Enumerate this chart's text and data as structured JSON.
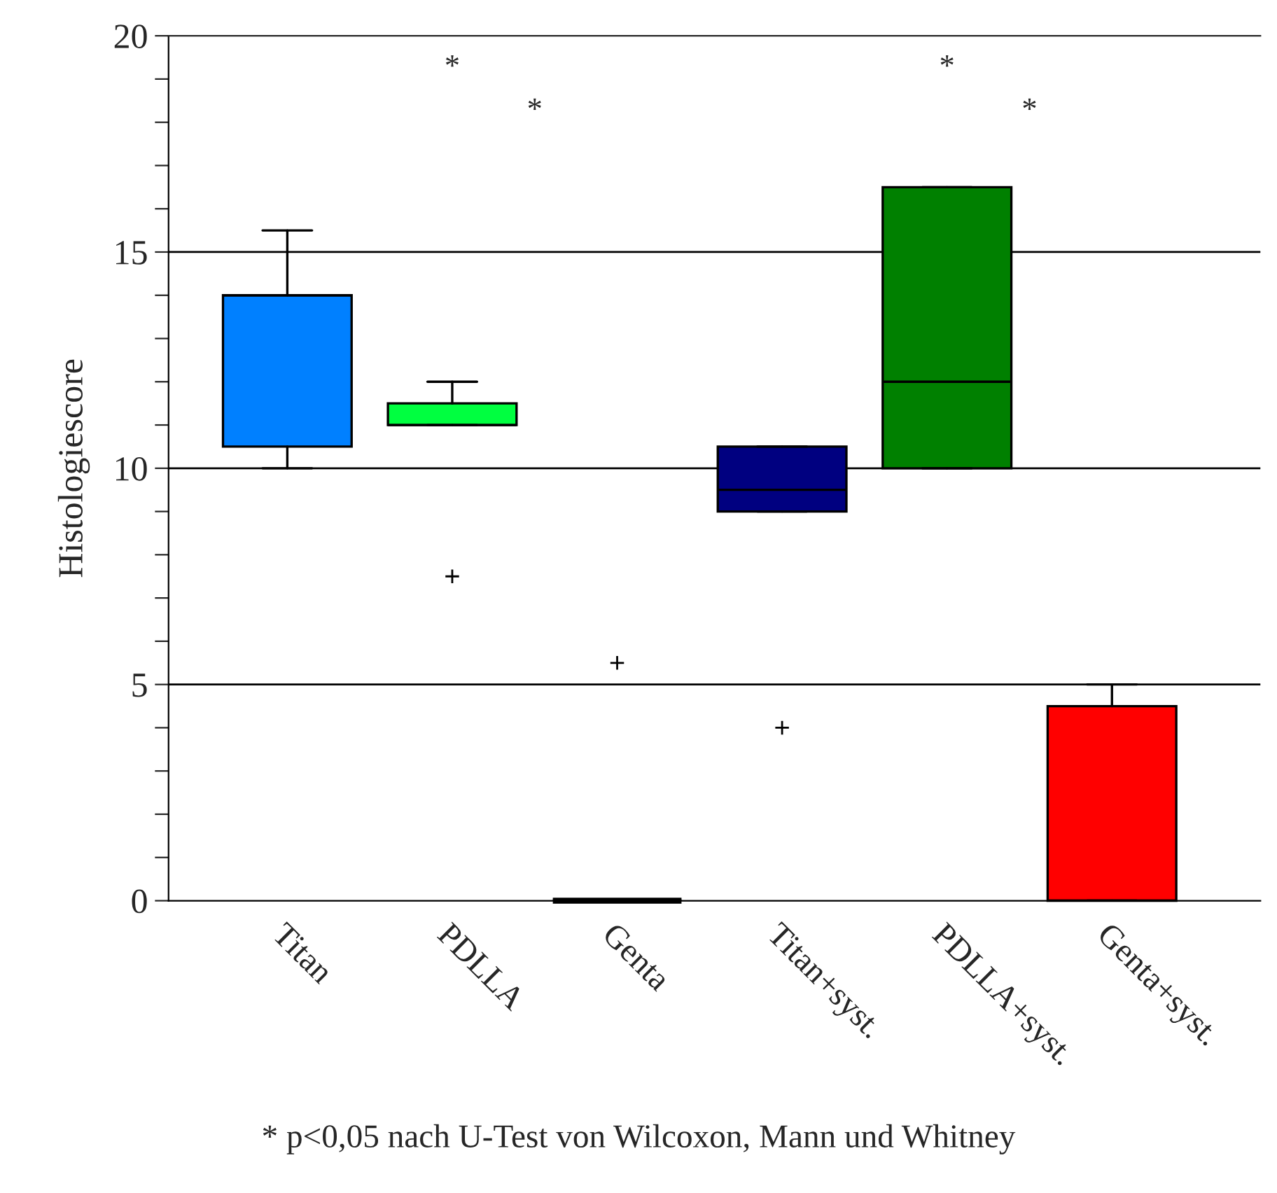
{
  "chart_data": {
    "type": "box",
    "ylabel": "Histologiescore",
    "categories": [
      "Titan",
      "PDLLA",
      "Genta",
      "Titan+syst.",
      "PDLLA+syst.",
      "Genta+syst."
    ],
    "colors": [
      "#0080ff",
      "#00ff40",
      "#000000",
      "#000080",
      "#008000",
      "#ff0000"
    ],
    "boxes": [
      {
        "low": 10,
        "q1": 10.5,
        "median": 14,
        "q3": 14,
        "high": 15.5
      },
      {
        "low": 11,
        "q1": 11,
        "median": 11,
        "q3": 11.5,
        "high": 12,
        "outliers": [
          7.5
        ]
      },
      {
        "low": 0,
        "q1": 0,
        "median": 0,
        "q3": 0,
        "high": 0,
        "outliers": [
          5.5
        ]
      },
      {
        "low": 9,
        "q1": 9,
        "median": 9.5,
        "q3": 10.5,
        "high": 10.5,
        "outliers": [
          4
        ]
      },
      {
        "low": 10,
        "q1": 10,
        "median": 12,
        "q3": 16.5,
        "high": 16.5
      },
      {
        "low": 0,
        "q1": 0,
        "median": 0,
        "q3": 4.5,
        "high": 5
      }
    ],
    "ylim": [
      0,
      20
    ],
    "yticks": [
      0,
      {
        "value": 1,
        "label": null
      },
      {
        "value": 2,
        "label": null
      },
      {
        "value": 3,
        "label": null
      },
      {
        "value": 4,
        "label": null
      },
      5,
      {
        "value": 6,
        "label": null
      },
      {
        "value": 7,
        "label": null
      },
      {
        "value": 8,
        "label": null
      },
      {
        "value": 9,
        "label": null
      },
      10,
      {
        "value": 11,
        "label": null
      },
      {
        "value": 12,
        "label": null
      },
      {
        "value": 13,
        "label": null
      },
      {
        "value": 14,
        "label": null
      },
      15,
      {
        "value": 16,
        "label": null
      },
      {
        "value": 17,
        "label": null
      },
      {
        "value": 18,
        "label": null
      },
      {
        "value": 19,
        "label": null
      },
      20
    ],
    "ref_lines": [
      {
        "axis": "y",
        "value": 5,
        "color": "#000000"
      },
      {
        "axis": "y",
        "value": 10,
        "color": "#000000"
      },
      {
        "axis": "y",
        "value": 15,
        "color": "#000000"
      }
    ],
    "annotations": [
      "*",
      "*",
      "*",
      "*",
      "* p<0,05 nach U-Test von Wilcoxon, Mann und Whitney"
    ]
  }
}
